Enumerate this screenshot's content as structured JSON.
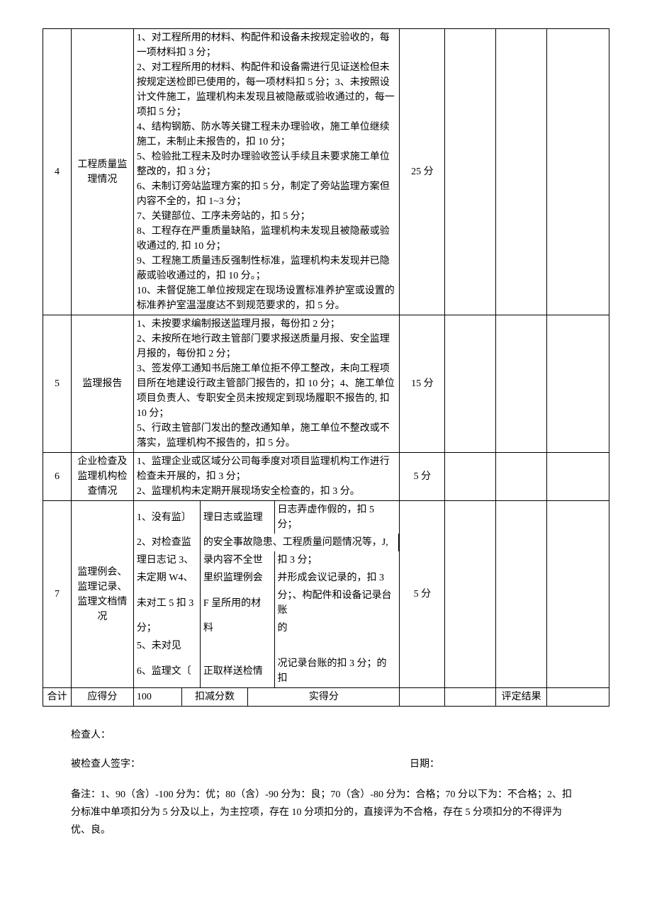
{
  "rows": [
    {
      "idx": "4",
      "item": "工程质量监理情况",
      "criteria": "1、对工程所用的材料、构配件和设备未按规定验收的，每一项材料扣 3 分；\n2、对工程所用的材料、构配件和设备需进行见证送检但未按规定送检即已使用的，每一项材料扣 5 分；3、未按照设计文件施工，监理机构未发现且被隐蔽或验收通过的，每一项扣 5 分；\n4、结构钢筋、防水等关键工程未办理验收，施工单位继续施工，未制止未报告的，扣 10 分；\n5、检验批工程未及时办理验收签认手续且未要求施工单位整改的，扣 3 分；\n6、未制订旁站监理方案的扣 5 分，制定了旁站监理方案但内容不全的，扣 1~3 分；\n7、关键部位、工序未旁站的，扣 5 分；\n8、工程存在严重质量缺陷，监理机构未发现且被隐蔽或验收通过的, 扣 10 分；\n9、工程施工质量违反强制性标准，监理机构未发现并已隐蔽或验收通过的，扣 10 分。；\n10、未督促施工单位按规定在现场设置标准养护室或设置的标准养护室温湿度达不到规范要求的，扣 5 分。",
      "score": "25 分"
    },
    {
      "idx": "5",
      "item": "监理报告",
      "criteria": "1、未按要求编制报送监理月报，每份扣 2 分；\n2、未按所在地行政主管部门要求报送质量月报、安全监理月报的，每份扣 2 分；\n3、签发停工通知书后施工单位拒不停工整改，未向工程项目所在地建设行政主管部门报告的，扣 10 分；4、施工单位项目负责人、专职安全员未按规定到现场履职不报告的, 扣 10 分；\n5、行政主管部门发出的整改通知单，施工单位不整改或不落实，监理机构不报告的，扣 5 分。",
      "score": "15 分"
    },
    {
      "idx": "6",
      "item": "企业检查及监理机构检查情况",
      "criteria": "1、监理企业或区域分公司每季度对项目监理机构工作进行检查未开展的，扣 3 分；\n2、监理机构未定期开展现场安全检查的，扣 3 分。",
      "score": "5 分"
    }
  ],
  "row7": {
    "idx": "7",
    "item": "监理例会、监理记录、监理文档情况",
    "c1_l1": "1、没有监〕",
    "c2_l1": "理日志或监理",
    "c3_l1": "日志弄虚作假的，扣 5 分；",
    "c1_l2": "2、对检查监",
    "c3_l2": "的安全事故隐患、工程质量问题情况等，J,",
    "c1_l3": "理日志记 3、",
    "c2_l3": "录内容不全世",
    "c3_l3": "扣 3 分；",
    "c1_l4": "未定期 W4、",
    "c2_l4": "里织监理例会",
    "c3_l4": "并形成会议记录的，扣 3",
    "c1_l5": "未对工 5 扣 3",
    "c2_l5": "F 呈所用的材",
    "c3_l5": "分；、构配件和设备记录台账",
    "c1_l6": "分；",
    "c2_l6": "料",
    "c3_l6": "的",
    "c1_l7": "5、未对见",
    "c1_l8": "6、监理文〔",
    "c2_l8": "正取样送检情",
    "c3_l8": "况记录台账的扣 3 分；的扣",
    "score": "5 分"
  },
  "total": {
    "label": "合计",
    "col2": "应得分",
    "col3": "100",
    "col4": "扣减分数",
    "col5": "实得分",
    "col7": "评定结果"
  },
  "footer": {
    "inspector": "检查人：",
    "inspected_sign": "被检查人签字：",
    "date": "日期：",
    "note": "备注：1、90（含）-100 分为：优；80（含）-90 分为：良；70（含）-80 分为：合格；70 分以下为：不合格；2、扣分标准中单项扣分为 5 分及以上，为主控项，存在 10 分项扣分的，直接评为不合格，存在 5 分项扣分的不得评为优、良。"
  },
  "colors": {
    "border": "#000000",
    "text": "#000000",
    "background": "#ffffff"
  },
  "col_widths": {
    "idx": "5%",
    "item": "11%",
    "criteria": "47%",
    "score": "8%",
    "blank1": "9%",
    "blank2": "9%",
    "blank3": "11%"
  }
}
